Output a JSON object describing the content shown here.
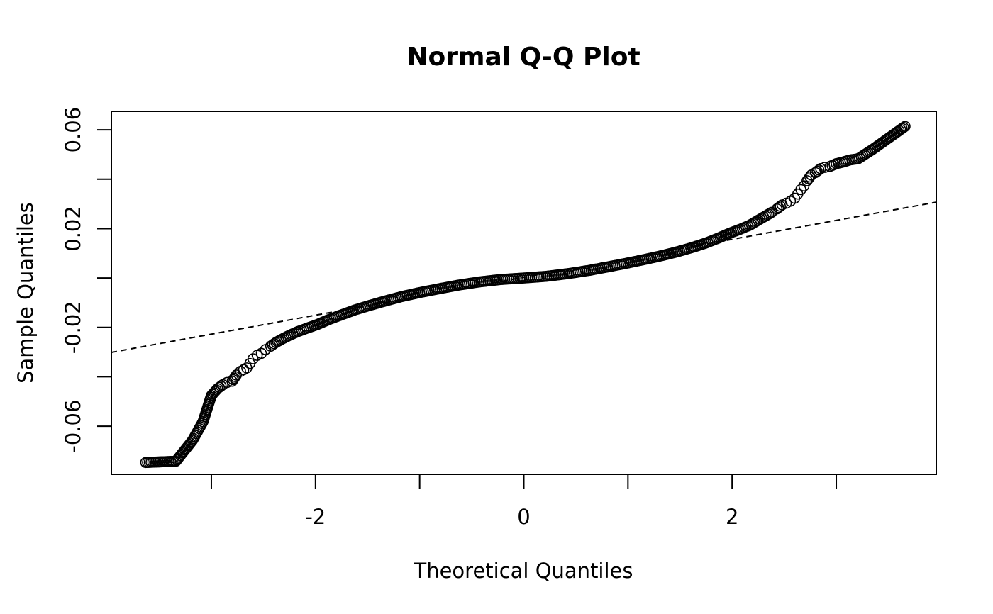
{
  "chart_data": {
    "type": "scatter",
    "title": "Normal Q-Q Plot",
    "xlabel": "Theoretical Quantiles",
    "ylabel": "Sample Quantiles",
    "xlim": [
      -3.96,
      3.96
    ],
    "ylim": [
      -0.0795,
      0.0675
    ],
    "x_ticks": [
      -3,
      -2,
      -1,
      0,
      1,
      2,
      3
    ],
    "x_tick_labels": [
      "",
      "-2",
      "",
      "0",
      "",
      "2",
      ""
    ],
    "y_ticks": [
      -0.06,
      -0.04,
      -0.02,
      0,
      0.02,
      0.04,
      0.06
    ],
    "y_tick_labels": [
      "-0.06",
      "",
      "-0.02",
      "",
      "0.02",
      "",
      "0.06"
    ],
    "grid": false,
    "marker": "open-circle",
    "colors": {
      "points": "#000000",
      "line": "#000000",
      "frame": "#000000",
      "background": "#ffffff"
    },
    "reference_line": {
      "style": "dashed",
      "slope": 0.00768,
      "intercept": 0.0003
    },
    "series": [
      {
        "x": [
          -3.63,
          -3.34,
          -3.18,
          -3.08,
          -3.0,
          -2.94,
          -2.89,
          -2.85,
          -2.8,
          -2.76,
          -2.72,
          -2.69,
          -2.66,
          -2.63,
          -2.6,
          -2.56,
          -2.52,
          -2.48,
          -2.43,
          -2.38,
          -2.32,
          -2.25,
          -2.17,
          -2.08,
          -1.98,
          -1.87,
          -1.75,
          -1.62,
          -1.48,
          -1.33,
          -1.17,
          -1.0,
          -0.82,
          -0.63,
          -0.43,
          -0.22,
          0.0,
          0.22,
          0.43,
          0.63,
          0.82,
          1.0,
          1.17,
          1.33,
          1.48,
          1.62,
          1.75,
          1.87,
          1.98,
          2.08,
          2.17,
          2.25,
          2.32,
          2.38,
          2.43,
          2.48,
          2.52,
          2.56,
          2.6,
          2.63,
          2.66,
          2.69,
          2.72,
          2.76,
          2.8,
          2.85,
          2.89,
          2.94,
          3.0,
          3.06,
          3.13,
          3.21,
          3.35,
          3.66
        ],
        "y": [
          -0.0747,
          -0.0742,
          -0.0657,
          -0.0582,
          -0.0476,
          -0.0448,
          -0.0432,
          -0.0423,
          -0.0418,
          -0.0393,
          -0.0378,
          -0.0371,
          -0.0364,
          -0.0346,
          -0.0327,
          -0.0313,
          -0.0305,
          -0.029,
          -0.0276,
          -0.0261,
          -0.0247,
          -0.0232,
          -0.0217,
          -0.0203,
          -0.0188,
          -0.0168,
          -0.0149,
          -0.0129,
          -0.0111,
          -0.0093,
          -0.0075,
          -0.0059,
          -0.0044,
          -0.0029,
          -0.0016,
          -0.0006,
          0.0,
          0.0007,
          0.0018,
          0.0031,
          0.0046,
          0.0061,
          0.0076,
          0.0091,
          0.0107,
          0.0124,
          0.0142,
          0.0162,
          0.0182,
          0.0198,
          0.0214,
          0.0234,
          0.0251,
          0.0266,
          0.028,
          0.0296,
          0.0303,
          0.0311,
          0.0323,
          0.034,
          0.0358,
          0.0373,
          0.0394,
          0.0417,
          0.0427,
          0.0443,
          0.0448,
          0.0452,
          0.0463,
          0.0469,
          0.0478,
          0.0483,
          0.0521,
          0.0614
        ]
      }
    ]
  }
}
